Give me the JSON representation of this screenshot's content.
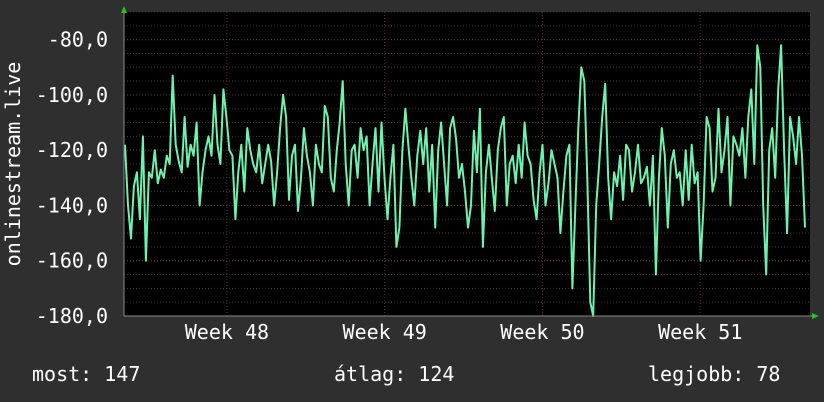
{
  "chart_data": {
    "type": "line",
    "ylabel": "onlinestream.live",
    "ylim": [
      -180,
      -70
    ],
    "yticks": [
      -80,
      -100,
      -120,
      -140,
      -160,
      -180
    ],
    "ytick_labels": [
      "-80,0",
      "-100,0",
      "-120,0",
      "-140,0",
      "-160,0",
      "-180,0"
    ],
    "xlim": [
      0,
      100
    ],
    "xticks": [
      {
        "label": "Week 48",
        "x": 15
      },
      {
        "label": "Week 49",
        "x": 38
      },
      {
        "label": "Week 50",
        "x": 61
      },
      {
        "label": "Week 51",
        "x": 84
      }
    ],
    "grid": true,
    "colors": {
      "background": "#2f2f2f",
      "plot": "#000000",
      "line": "#6ef2b0",
      "grid": "#4a4a4a",
      "arrow": "#22c322"
    },
    "series": [
      {
        "values": [
          -118,
          -140,
          -152,
          -133,
          -128,
          -145,
          -115,
          -160,
          -128,
          -130,
          -120,
          -132,
          -127,
          -130,
          -122,
          -125,
          -93,
          -118,
          -124,
          -128,
          -108,
          -126,
          -118,
          -122,
          -110,
          -140,
          -128,
          -120,
          -115,
          -122,
          -100,
          -118,
          -125,
          -98,
          -108,
          -120,
          -122,
          -145,
          -128,
          -118,
          -135,
          -112,
          -120,
          -125,
          -128,
          -118,
          -132,
          -125,
          -118,
          -124,
          -140,
          -128,
          -112,
          -100,
          -108,
          -138,
          -122,
          -118,
          -142,
          -130,
          -112,
          -122,
          -128,
          -140,
          -118,
          -125,
          -128,
          -104,
          -108,
          -130,
          -135,
          -120,
          -110,
          -95,
          -125,
          -140,
          -120,
          -118,
          -130,
          -112,
          -120,
          -115,
          -140,
          -125,
          -112,
          -135,
          -110,
          -130,
          -145,
          -130,
          -118,
          -155,
          -148,
          -120,
          -105,
          -118,
          -130,
          -140,
          -122,
          -113,
          -125,
          -112,
          -135,
          -118,
          -148,
          -120,
          -110,
          -125,
          -140,
          -112,
          -108,
          -116,
          -130,
          -125,
          -135,
          -148,
          -140,
          -113,
          -128,
          -105,
          -155,
          -128,
          -118,
          -130,
          -142,
          -120,
          -112,
          -108,
          -140,
          -125,
          -122,
          -132,
          -118,
          -130,
          -110,
          -122,
          -125,
          -138,
          -145,
          -128,
          -118,
          -140,
          -132,
          -120,
          -125,
          -130,
          -150,
          -135,
          -122,
          -118,
          -170,
          -140,
          -112,
          -90,
          -95,
          -130,
          -175,
          -185,
          -140,
          -125,
          -108,
          -96,
          -130,
          -145,
          -128,
          -133,
          -122,
          -138,
          -118,
          -120,
          -135,
          -128,
          -118,
          -132,
          -130,
          -126,
          -140,
          -122,
          -165,
          -130,
          -112,
          -122,
          -148,
          -125,
          -120,
          -130,
          -128,
          -140,
          -120,
          -138,
          -118,
          -132,
          -128,
          -160,
          -140,
          -108,
          -112,
          -135,
          -130,
          -105,
          -128,
          -120,
          -108,
          -140,
          -115,
          -118,
          -122,
          -112,
          -130,
          -108,
          -98,
          -125,
          -82,
          -90,
          -140,
          -165,
          -120,
          -112,
          -130,
          -98,
          -82,
          -120,
          -150,
          -108,
          -115,
          -125,
          -108,
          -122,
          -148
        ],
        "color": "#6ef2b0"
      }
    ]
  },
  "footer": {
    "now": "most: 147",
    "avg": "átlag: 124",
    "best": "legjobb: 78"
  }
}
